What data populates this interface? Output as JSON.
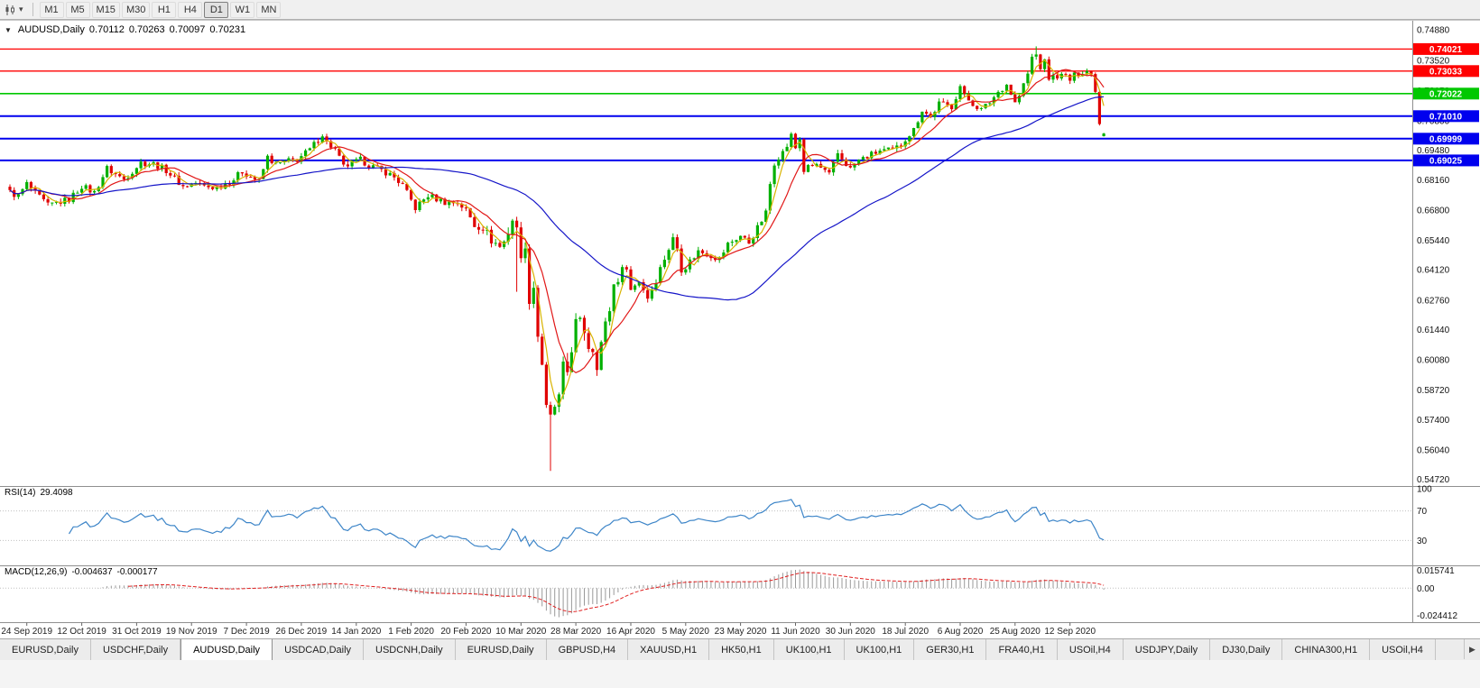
{
  "toolbar": {
    "timeframes": [
      "M1",
      "M5",
      "M15",
      "M30",
      "H1",
      "H4",
      "D1",
      "W1",
      "MN"
    ],
    "active_timeframe": "D1",
    "dropdown_icon": "▾"
  },
  "tabs": {
    "items": [
      "EURUSD,Daily",
      "USDCHF,Daily",
      "AUDUSD,Daily",
      "USDCAD,Daily",
      "USDCNH,Daily",
      "EURUSD,Daily",
      "GBPUSD,H4",
      "XAUUSD,H1",
      "HK50,H1",
      "UK100,H1",
      "UK100,H1",
      "GER30,H1",
      "FRA40,H1",
      "USOil,H4",
      "USDJPY,Daily",
      "DJ30,Daily",
      "CHINA300,H1",
      "USOil,H4"
    ],
    "active_index": 2,
    "scroll_right_icon": "▶"
  },
  "chart_data": {
    "type": "candlestick",
    "title": "AUDUSD,Daily",
    "header": {
      "collapse_icon": "▼",
      "symbol_period": "AUDUSD,Daily",
      "open": "0.70112",
      "high": "0.70263",
      "low": "0.70097",
      "close": "0.70231"
    },
    "count": 260,
    "y_range": [
      0.545,
      0.7525
    ],
    "price_axis_labels": [
      "0.74880",
      "0.73520",
      "0.72150",
      "0.70800",
      "0.69480",
      "0.68160",
      "0.66800",
      "0.65440",
      "0.64120",
      "0.62760",
      "0.61440",
      "0.60080",
      "0.58720",
      "0.57400",
      "0.56040",
      "0.54720"
    ],
    "x_labels": [
      "24 Sep 2019",
      "12 Oct 2019",
      "31 Oct 2019",
      "19 Nov 2019",
      "7 Dec 2019",
      "26 Dec 2019",
      "14 Jan 2020",
      "1 Feb 2020",
      "20 Feb 2020",
      "10 Mar 2020",
      "28 Mar 2020",
      "16 Apr 2020",
      "5 May 2020",
      "23 May 2020",
      "11 Jun 2020",
      "30 Jun 2020",
      "18 Jul 2020",
      "6 Aug 2020",
      "25 Aug 2020",
      "12 Sep 2020"
    ],
    "x_label_start": 4,
    "x_label_step": 13,
    "hlines": [
      {
        "price": 0.74021,
        "label": "0.74021",
        "color": "#ff0000",
        "width": 1.3
      },
      {
        "price": 0.73033,
        "label": "0.73033",
        "color": "#ff0000",
        "width": 1.3
      },
      {
        "price": 0.72022,
        "label": "0.72022",
        "color": "#00c800",
        "width": 1.7
      },
      {
        "price": 0.7101,
        "label": "0.71010",
        "color": "#0000ee",
        "width": 2
      },
      {
        "price": 0.69999,
        "label": "0.69999",
        "color": "#0000ee",
        "width": 2
      },
      {
        "price": 0.69025,
        "label": "0.69025",
        "color": "#0000ee",
        "width": 2
      }
    ],
    "anchors": [
      [
        0,
        0.676
      ],
      [
        2,
        0.6742
      ],
      [
        4,
        0.6797
      ],
      [
        6,
        0.6755
      ],
      [
        9,
        0.67
      ],
      [
        11,
        0.6712
      ],
      [
        14,
        0.6727
      ],
      [
        17,
        0.6788
      ],
      [
        20,
        0.6758
      ],
      [
        23,
        0.6867
      ],
      [
        25,
        0.684
      ],
      [
        27,
        0.6818
      ],
      [
        31,
        0.6893
      ],
      [
        34,
        0.6887
      ],
      [
        37,
        0.6859
      ],
      [
        41,
        0.6785
      ],
      [
        44,
        0.6802
      ],
      [
        46,
        0.6786
      ],
      [
        49,
        0.678
      ],
      [
        53,
        0.6818
      ],
      [
        55,
        0.6853
      ],
      [
        59,
        0.6808
      ],
      [
        61,
        0.6917
      ],
      [
        63,
        0.6884
      ],
      [
        66,
        0.69
      ],
      [
        68,
        0.6907
      ],
      [
        71,
        0.695
      ],
      [
        74,
        0.7021
      ],
      [
        75,
        0.6983
      ],
      [
        77,
        0.695
      ],
      [
        79,
        0.6873
      ],
      [
        83,
        0.6904
      ],
      [
        86,
        0.6873
      ],
      [
        89,
        0.685
      ],
      [
        91,
        0.6827
      ],
      [
        93,
        0.679
      ],
      [
        96,
        0.6689
      ],
      [
        99,
        0.6745
      ],
      [
        101,
        0.673
      ],
      [
        103,
        0.6715
      ],
      [
        106,
        0.6713
      ],
      [
        108,
        0.668
      ],
      [
        110,
        0.6611
      ],
      [
        112,
        0.6604
      ],
      [
        114,
        0.6546
      ],
      [
        116,
        0.6515
      ],
      [
        117,
        0.6537
      ],
      [
        118,
        0.6585
      ],
      [
        119,
        0.664
      ],
      [
        120,
        0.6582
      ],
      [
        121,
        0.6496
      ],
      [
        122,
        0.6484
      ],
      [
        123,
        0.629
      ],
      [
        124,
        0.634
      ],
      [
        125,
        0.612
      ],
      [
        126,
        0.5995
      ],
      [
        127,
        0.578
      ],
      [
        128,
        0.574
      ],
      [
        129,
        0.58
      ],
      [
        130,
        0.583
      ],
      [
        131,
        0.5965
      ],
      [
        132,
        0.5955
      ],
      [
        133,
        0.6065
      ],
      [
        134,
        0.617
      ],
      [
        135,
        0.617
      ],
      [
        136,
        0.614
      ],
      [
        137,
        0.607
      ],
      [
        138,
        0.606
      ],
      [
        139,
        0.599
      ],
      [
        140,
        0.6085
      ],
      [
        141,
        0.6165
      ],
      [
        142,
        0.6235
      ],
      [
        143,
        0.6345
      ],
      [
        146,
        0.6436
      ],
      [
        147,
        0.632
      ],
      [
        149,
        0.6365
      ],
      [
        151,
        0.6289
      ],
      [
        153,
        0.637
      ],
      [
        155,
        0.6465
      ],
      [
        157,
        0.655
      ],
      [
        158,
        0.651
      ],
      [
        159,
        0.6417
      ],
      [
        160,
        0.6428
      ],
      [
        163,
        0.6495
      ],
      [
        165,
        0.6485
      ],
      [
        168,
        0.646
      ],
      [
        170,
        0.6527
      ],
      [
        173,
        0.6564
      ],
      [
        175,
        0.6534
      ],
      [
        178,
        0.6632
      ],
      [
        179,
        0.6667
      ],
      [
        180,
        0.6797
      ],
      [
        181,
        0.6893
      ],
      [
        182,
        0.6921
      ],
      [
        183,
        0.6938
      ],
      [
        184,
        0.6968
      ],
      [
        185,
        0.7014
      ],
      [
        186,
        0.6958
      ],
      [
        187,
        0.7
      ],
      [
        188,
        0.6856
      ],
      [
        189,
        0.687
      ],
      [
        191,
        0.6884
      ],
      [
        194,
        0.6836
      ],
      [
        196,
        0.6933
      ],
      [
        199,
        0.6864
      ],
      [
        201,
        0.6903
      ],
      [
        203,
        0.692
      ],
      [
        206,
        0.6946
      ],
      [
        209,
        0.6948
      ],
      [
        211,
        0.6973
      ],
      [
        212,
        0.7
      ],
      [
        214,
        0.704
      ],
      [
        216,
        0.713
      ],
      [
        218,
        0.7095
      ],
      [
        220,
        0.7158
      ],
      [
        223,
        0.7143
      ],
      [
        225,
        0.7236
      ],
      [
        226,
        0.719
      ],
      [
        228,
        0.7157
      ],
      [
        230,
        0.713
      ],
      [
        232,
        0.7164
      ],
      [
        234,
        0.721
      ],
      [
        236,
        0.7244
      ],
      [
        238,
        0.716
      ],
      [
        239,
        0.7193
      ],
      [
        241,
        0.729
      ],
      [
        242,
        0.7365
      ],
      [
        243,
        0.7376
      ],
      [
        244,
        0.732
      ],
      [
        245,
        0.7344
      ],
      [
        246,
        0.7272
      ],
      [
        248,
        0.7282
      ],
      [
        250,
        0.7281
      ],
      [
        251,
        0.7262
      ],
      [
        252,
        0.7284
      ],
      [
        254,
        0.7301
      ],
      [
        255,
        0.7305
      ],
      [
        256,
        0.7288
      ],
      [
        257,
        0.7221
      ],
      [
        258,
        0.7068
      ],
      [
        259,
        0.7023
      ]
    ],
    "vol_anchors": [
      [
        0,
        1
      ],
      [
        108,
        1
      ],
      [
        116,
        1.7
      ],
      [
        120,
        2.3
      ],
      [
        132,
        2.4
      ],
      [
        140,
        1.8
      ],
      [
        152,
        1.3
      ],
      [
        170,
        1.0
      ],
      [
        259,
        0.9
      ]
    ],
    "noise_amp": 0.0015,
    "special_points": {
      "120": {
        "low": 0.6313
      },
      "128": {
        "low": 0.551
      },
      "243": {
        "high": 0.7414
      },
      "259": {
        "open": 0.70112,
        "high": 0.70263,
        "low": 0.70097,
        "close": 0.70231
      }
    },
    "moving_averages": [
      {
        "period": 4,
        "color": "#d9b300"
      },
      {
        "period": 10,
        "color": "#e11818"
      },
      {
        "period": 50,
        "color": "#1515c8"
      }
    ],
    "candle_up_color": "#00b000",
    "candle_down_color": "#e00000",
    "indicators": {
      "rsi": {
        "label": "RSI(14)",
        "value": "29.4098",
        "color": "#3d85c8",
        "levels": [
          100,
          70,
          30
        ],
        "level_labels": [
          "100",
          "70",
          "30"
        ]
      },
      "macd": {
        "label": "MACD(12,26,9)",
        "value_main": "-0.004637",
        "value_signal": "-0.000177",
        "axis_top": "0.015741",
        "axis_zero": "0.00",
        "axis_bottom": "-0.024412",
        "hist_color": "#999999",
        "signal_color": "#e02020"
      }
    }
  }
}
